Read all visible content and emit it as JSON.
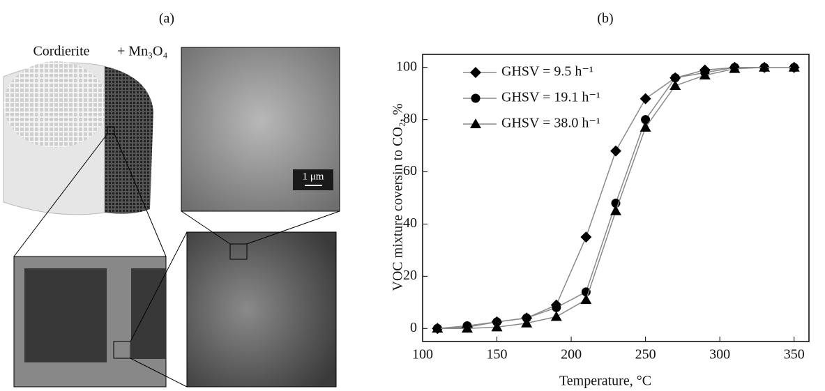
{
  "panel_a": {
    "label": "(a)",
    "substrate": "Cordierite",
    "coating": "+ Mn₃O₄",
    "scale_bar": "1 μm"
  },
  "chart_data": {
    "type": "line",
    "title": "(b)",
    "x_label": "Temperature, °C",
    "y_label": "VOC mixture coversin to CO₂, %",
    "x": [
      110,
      130,
      150,
      170,
      190,
      210,
      230,
      250,
      270,
      290,
      310,
      330,
      350
    ],
    "series": [
      {
        "name": "GHSV = 9.5 h⁻¹",
        "color": "#000000",
        "marker": "diamond",
        "values": [
          0,
          0.5,
          2.5,
          4,
          9,
          35,
          68,
          88,
          96,
          99,
          100,
          100,
          100
        ]
      },
      {
        "name": "GHSV = 19.1 h⁻¹",
        "color": "#000000",
        "marker": "circle",
        "values": [
          0,
          1,
          2.5,
          4,
          8,
          14,
          48,
          80,
          96,
          98,
          100,
          100,
          100
        ]
      },
      {
        "name": "GHSV = 38.0 h⁻¹",
        "color": "#000000",
        "marker": "triangle",
        "values": [
          0,
          0,
          0.5,
          2,
          4.5,
          11,
          45,
          77,
          93,
          97,
          99.5,
          100,
          100
        ]
      }
    ],
    "line_color": "#8a8a8a",
    "xlim": [
      100,
      360
    ],
    "xticks": [
      100,
      150,
      200,
      250,
      300,
      350
    ],
    "ylim": [
      -5,
      105
    ],
    "yticks": [
      0,
      20,
      40,
      60,
      80,
      100
    ],
    "legend": "upper-left",
    "grid": false
  }
}
